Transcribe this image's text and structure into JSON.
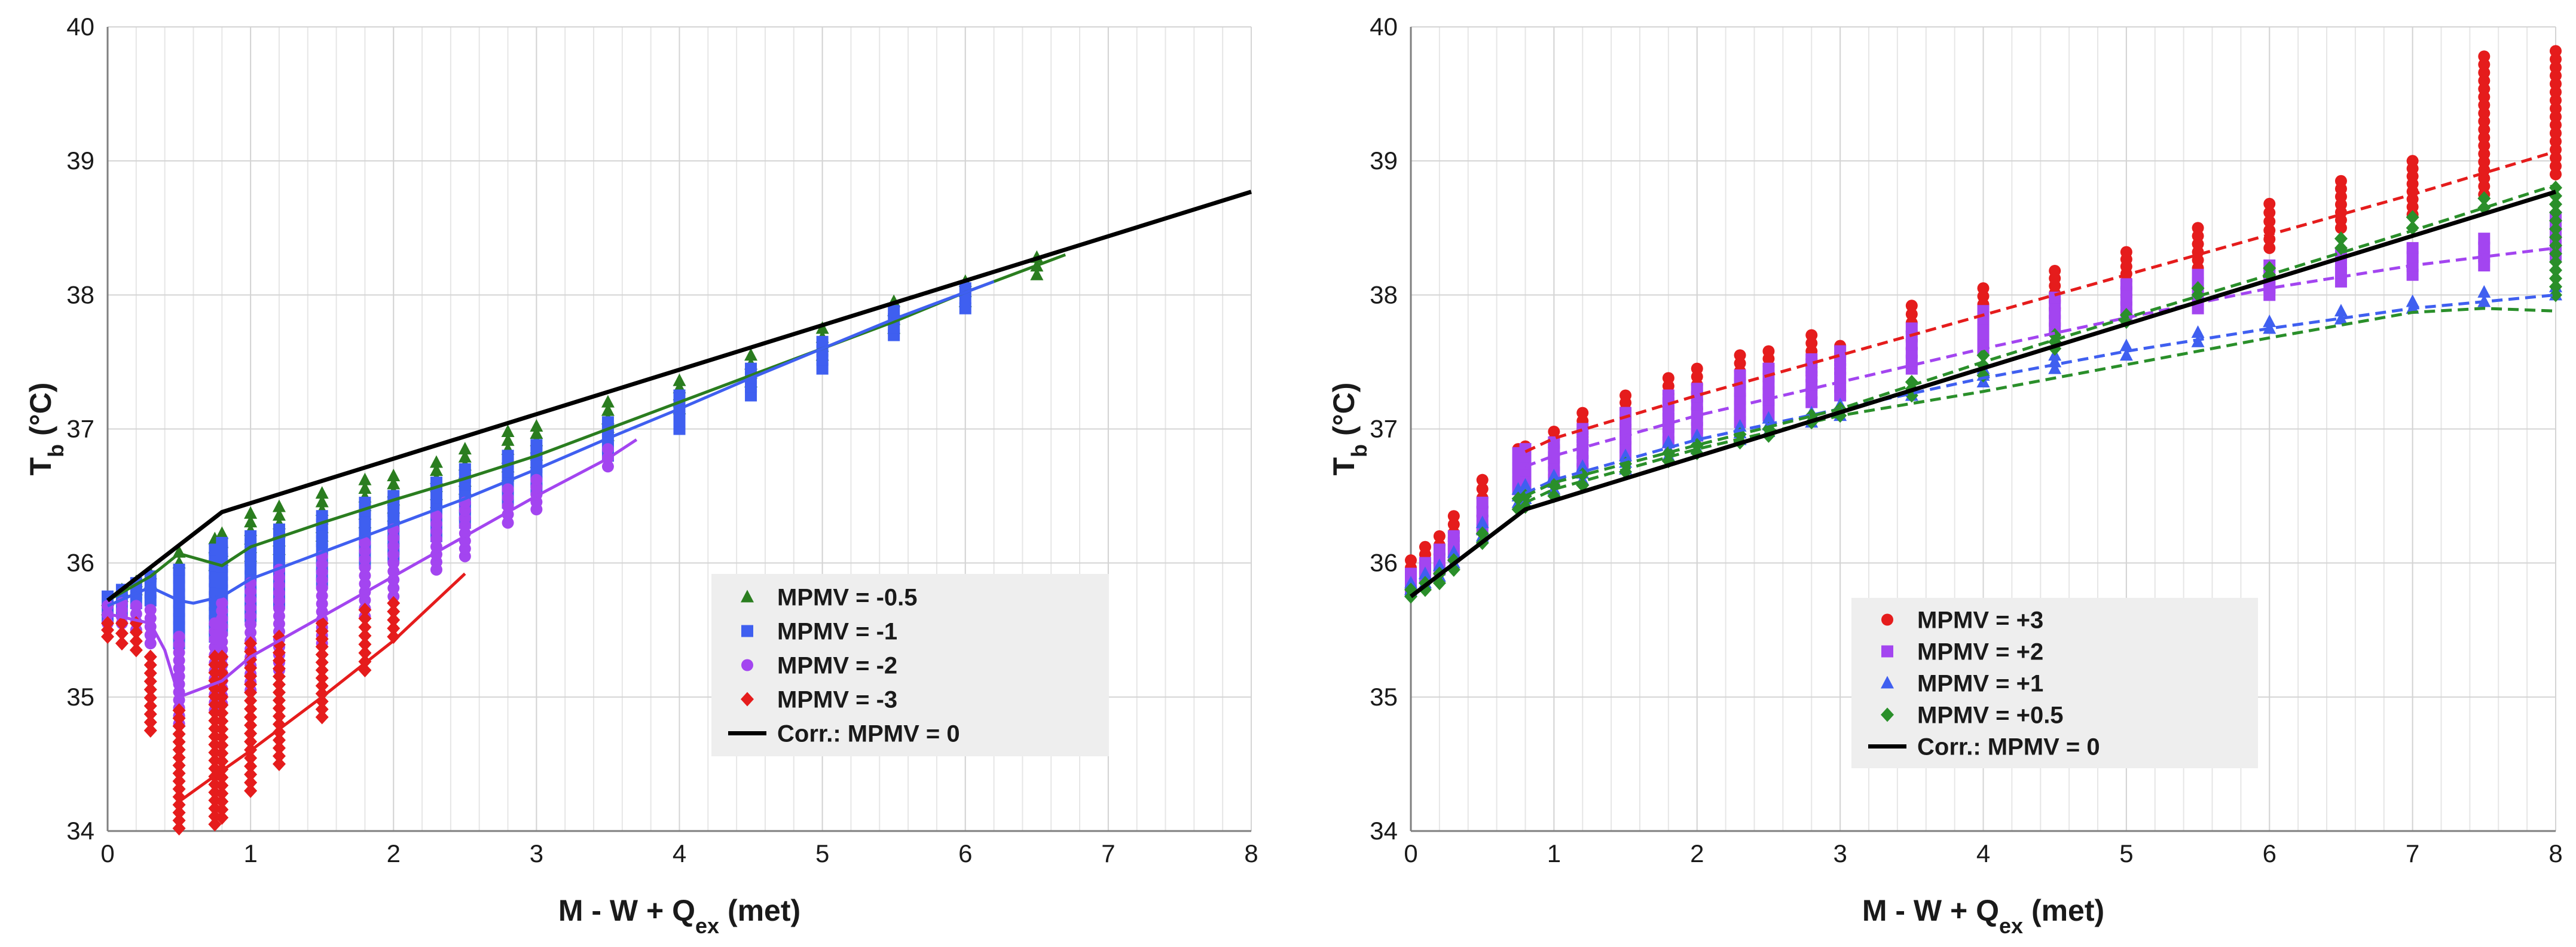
{
  "chart_data": [
    {
      "type": "scatter",
      "panel": "left",
      "xlabel": {
        "main": "M - W +  Q",
        "sub": "ex",
        "unit": " (met)"
      },
      "ylabel": {
        "main": "T",
        "sub": "b",
        "unit": " (°C)"
      },
      "xlim": [
        0,
        8
      ],
      "ylim": [
        34,
        40
      ],
      "xticks": [
        "0",
        "1",
        "2",
        "3",
        "4",
        "5",
        "6",
        "7",
        "8"
      ],
      "yticks": [
        "34",
        "35",
        "36",
        "37",
        "38",
        "39",
        "40"
      ],
      "grid": true,
      "legend_position": "center-right",
      "correlation": {
        "name": "Corr.: MPMV = 0",
        "color": "#000000",
        "x": [
          0,
          0.8,
          8
        ],
        "y": [
          35.72,
          36.38,
          38.77
        ]
      },
      "series": [
        {
          "name": "MPMV = -0.5",
          "marker": "triangle",
          "color": "#2a7d1f",
          "line_style": "solid",
          "fit_x": [
            0,
            0.3,
            0.5,
            0.8,
            1,
            1.5,
            2,
            2.5,
            3,
            3.5,
            4,
            4.5,
            5,
            5.5,
            6,
            6.5,
            6.7
          ],
          "fit_y": [
            35.72,
            35.9,
            36.07,
            35.98,
            36.12,
            36.3,
            36.47,
            36.63,
            36.8,
            37.0,
            37.2,
            37.4,
            37.6,
            37.8,
            38.02,
            38.22,
            38.3
          ],
          "x": [
            0,
            0.1,
            0.2,
            0.3,
            0.5,
            0.75,
            0.8,
            1,
            1.2,
            1.5,
            1.8,
            2,
            2.3,
            2.5,
            2.8,
            3,
            3.5,
            4,
            4.5,
            5,
            5.5,
            6,
            6.5
          ],
          "y_min": [
            35.65,
            35.75,
            35.8,
            35.85,
            36.0,
            35.98,
            36.02,
            36.05,
            36.1,
            36.2,
            36.3,
            36.35,
            36.45,
            36.55,
            36.65,
            36.75,
            36.95,
            37.15,
            37.35,
            37.55,
            37.75,
            37.95,
            38.15
          ],
          "y_max": [
            35.72,
            35.8,
            35.86,
            35.92,
            36.08,
            36.18,
            36.22,
            36.37,
            36.42,
            36.52,
            36.62,
            36.65,
            36.75,
            36.85,
            36.98,
            37.02,
            37.2,
            37.36,
            37.55,
            37.75,
            37.95,
            38.1,
            38.28
          ]
        },
        {
          "name": "MPMV = -1",
          "marker": "square",
          "color": "#3f5ff0",
          "line_style": "solid",
          "fit_x": [
            0,
            0.3,
            0.5,
            0.6,
            0.8,
            1,
            1.5,
            2,
            2.5,
            3,
            3.5,
            4,
            4.5,
            5,
            5.5,
            6,
            6.2
          ],
          "fit_y": [
            35.68,
            35.82,
            35.72,
            35.7,
            35.75,
            35.88,
            36.08,
            36.28,
            36.48,
            36.7,
            36.93,
            37.15,
            37.38,
            37.6,
            37.82,
            38.02,
            38.1
          ],
          "x": [
            0,
            0.1,
            0.2,
            0.3,
            0.5,
            0.75,
            0.8,
            1,
            1.2,
            1.5,
            1.8,
            2,
            2.3,
            2.5,
            2.8,
            3,
            3.5,
            4,
            4.5,
            5,
            5.5,
            6
          ],
          "y_min": [
            35.6,
            35.65,
            35.7,
            35.72,
            35.4,
            35.45,
            35.5,
            35.6,
            35.7,
            35.85,
            36.0,
            36.05,
            36.2,
            36.3,
            36.45,
            36.55,
            36.8,
            37.0,
            37.25,
            37.45,
            37.7,
            37.9
          ],
          "y_max": [
            35.75,
            35.8,
            35.85,
            35.9,
            35.95,
            36.1,
            36.15,
            36.2,
            36.25,
            36.35,
            36.45,
            36.5,
            36.6,
            36.7,
            36.8,
            36.88,
            37.05,
            37.25,
            37.45,
            37.65,
            37.88,
            38.05
          ]
        },
        {
          "name": "MPMV = -2",
          "marker": "circle",
          "color": "#a345f0",
          "line_style": "solid",
          "fit_x": [
            0,
            0.3,
            0.4,
            0.5,
            0.8,
            1,
            1.5,
            2,
            2.5,
            3,
            3.5,
            3.7
          ],
          "fit_y": [
            35.62,
            35.55,
            35.35,
            35.0,
            35.12,
            35.3,
            35.6,
            35.9,
            36.2,
            36.5,
            36.78,
            36.92
          ],
          "x": [
            0,
            0.1,
            0.2,
            0.3,
            0.5,
            0.75,
            0.8,
            1,
            1.2,
            1.5,
            1.8,
            2,
            2.3,
            2.5,
            2.8,
            3,
            3.5
          ],
          "y_min": [
            35.55,
            35.55,
            35.5,
            35.4,
            34.8,
            34.9,
            34.95,
            35.05,
            35.2,
            35.4,
            35.6,
            35.75,
            35.95,
            36.05,
            36.3,
            36.4,
            36.72
          ],
          "y_max": [
            35.68,
            35.7,
            35.68,
            35.65,
            35.45,
            35.55,
            35.7,
            35.85,
            35.95,
            36.05,
            36.15,
            36.25,
            36.35,
            36.45,
            36.55,
            36.62,
            36.85
          ]
        },
        {
          "name": "MPMV = -3",
          "marker": "diamond",
          "color": "#e51c1c",
          "line_style": "solid",
          "fit_x": [
            0.5,
            0.8,
            1,
            1.5,
            2,
            2.5
          ],
          "fit_y": [
            34.22,
            34.45,
            34.6,
            35.0,
            35.42,
            35.92
          ],
          "x": [
            0,
            0.1,
            0.2,
            0.3,
            0.5,
            0.75,
            0.8,
            1,
            1.2,
            1.5,
            1.8,
            2
          ],
          "y_min": [
            35.45,
            35.4,
            35.35,
            34.75,
            34.02,
            34.05,
            34.1,
            34.3,
            34.5,
            34.85,
            35.2,
            35.45
          ],
          "y_max": [
            35.55,
            35.55,
            35.55,
            35.3,
            34.9,
            35.3,
            35.3,
            35.4,
            35.45,
            35.55,
            35.65,
            35.7
          ]
        }
      ]
    },
    {
      "type": "scatter",
      "panel": "right",
      "xlabel": {
        "main": "M - W +  Q",
        "sub": "ex",
        "unit": " (met)"
      },
      "ylabel": {
        "main": "T",
        "sub": "b",
        "unit": " (°C)"
      },
      "xlim": [
        0,
        8
      ],
      "ylim": [
        34,
        40
      ],
      "xticks": [
        "0",
        "1",
        "2",
        "3",
        "4",
        "5",
        "6",
        "7",
        "8"
      ],
      "yticks": [
        "34",
        "35",
        "36",
        "37",
        "38",
        "39",
        "40"
      ],
      "grid": true,
      "legend_position": "lower-center",
      "correlation": {
        "name": "Corr.: MPMV = 0",
        "color": "#000000",
        "x": [
          0,
          0.8,
          8
        ],
        "y": [
          35.75,
          36.4,
          38.77
        ]
      },
      "series": [
        {
          "name": "MPMV = +3",
          "marker": "circle",
          "color": "#e51c1c",
          "line_style": "dashed",
          "fit_x": [
            0.8,
            1,
            2,
            3,
            4,
            5,
            6,
            7,
            8
          ],
          "fit_y": [
            36.83,
            36.93,
            37.25,
            37.55,
            37.85,
            38.15,
            38.45,
            38.75,
            39.07
          ],
          "x": [
            0,
            0.1,
            0.2,
            0.3,
            0.5,
            0.75,
            0.8,
            1,
            1.2,
            1.5,
            1.8,
            2,
            2.3,
            2.5,
            2.8,
            3,
            3.5,
            4,
            4.5,
            5,
            5.5,
            6,
            6.5,
            7,
            7.5,
            8
          ],
          "y_min": [
            35.85,
            35.95,
            36.0,
            36.1,
            36.35,
            36.7,
            36.72,
            36.8,
            36.88,
            36.98,
            37.08,
            37.15,
            37.25,
            37.3,
            37.4,
            37.45,
            37.6,
            37.75,
            37.9,
            38.05,
            38.2,
            38.35,
            38.5,
            38.6,
            38.75,
            38.9
          ],
          "y_max": [
            36.02,
            36.12,
            36.2,
            36.35,
            36.62,
            36.85,
            36.87,
            36.98,
            37.12,
            37.25,
            37.38,
            37.45,
            37.55,
            37.58,
            37.7,
            37.62,
            37.92,
            38.05,
            38.18,
            38.32,
            38.5,
            38.68,
            38.85,
            39.0,
            39.78,
            39.82
          ]
        },
        {
          "name": "MPMV = +2",
          "marker": "square",
          "color": "#a345f0",
          "line_style": "dashed",
          "fit_x": [
            0.8,
            1,
            2,
            3,
            4,
            5,
            6,
            7,
            8
          ],
          "fit_y": [
            36.72,
            36.8,
            37.1,
            37.35,
            37.6,
            37.83,
            38.05,
            38.22,
            38.35
          ],
          "x": [
            0,
            0.1,
            0.2,
            0.3,
            0.5,
            0.75,
            0.8,
            1,
            1.2,
            1.5,
            1.8,
            2,
            2.3,
            2.5,
            2.8,
            3,
            3.5,
            4,
            4.5,
            5,
            5.5,
            6,
            6.5,
            7,
            7.5,
            8
          ],
          "y_min": [
            35.8,
            35.9,
            35.95,
            36.05,
            36.25,
            36.55,
            36.58,
            36.62,
            36.7,
            36.8,
            36.9,
            36.95,
            37.05,
            37.1,
            37.2,
            37.25,
            37.45,
            37.6,
            37.75,
            37.85,
            37.9,
            38.0,
            38.1,
            38.15,
            38.22,
            38.3
          ],
          "y_max": [
            35.92,
            36.0,
            36.1,
            36.2,
            36.45,
            36.82,
            36.85,
            36.9,
            37.0,
            37.12,
            37.25,
            37.3,
            37.4,
            37.45,
            37.52,
            37.58,
            37.75,
            37.88,
            37.98,
            38.08,
            38.15,
            38.22,
            38.3,
            38.35,
            38.42,
            38.58
          ]
        },
        {
          "name": "MPMV = +1",
          "marker": "triangle",
          "color": "#3f5ff0",
          "line_style": "dashed",
          "fit_x": [
            0.8,
            1,
            2,
            3,
            4,
            5,
            6,
            7,
            8
          ],
          "fit_y": [
            36.52,
            36.62,
            36.92,
            37.15,
            37.38,
            37.58,
            37.75,
            37.9,
            38.0
          ],
          "x": [
            0,
            0.1,
            0.2,
            0.3,
            0.5,
            0.75,
            0.8,
            1,
            1.2,
            1.5,
            1.8,
            2,
            2.3,
            2.5,
            2.8,
            3,
            3.5,
            4,
            4.5,
            5,
            5.5,
            6,
            6.5,
            7,
            7.5,
            8
          ],
          "y_min": [
            35.8,
            35.85,
            35.9,
            36.0,
            36.2,
            36.45,
            36.48,
            36.55,
            36.62,
            36.7,
            36.8,
            36.85,
            36.92,
            36.98,
            37.05,
            37.1,
            37.25,
            37.35,
            37.45,
            37.55,
            37.65,
            37.75,
            37.82,
            37.9,
            37.95,
            38.0
          ],
          "y_max": [
            35.85,
            35.92,
            35.98,
            36.08,
            36.3,
            36.55,
            36.58,
            36.65,
            36.72,
            36.8,
            36.9,
            36.95,
            37.02,
            37.08,
            37.12,
            37.18,
            37.32,
            37.45,
            37.55,
            37.62,
            37.72,
            37.8,
            37.88,
            37.95,
            38.02,
            38.06
          ]
        },
        {
          "name": "MPMV = +0.5",
          "marker": "diamond",
          "color": "#2a8f2a",
          "line_style": "dashed",
          "fit_x": [
            0.8,
            1,
            2,
            3,
            4,
            5,
            6,
            7,
            7.5,
            8
          ],
          "fit_y": [
            36.45,
            36.55,
            36.85,
            37.1,
            37.28,
            37.48,
            37.68,
            37.87,
            37.9,
            37.88
          ],
          "fit2_x": [
            0.8,
            1,
            2,
            3,
            4,
            5,
            6,
            7,
            8
          ],
          "fit2_y": [
            36.5,
            36.6,
            36.88,
            37.15,
            37.5,
            37.83,
            38.15,
            38.48,
            38.82
          ],
          "x": [
            0,
            0.1,
            0.2,
            0.3,
            0.5,
            0.75,
            0.8,
            1,
            1.2,
            1.5,
            1.8,
            2,
            2.3,
            2.5,
            2.8,
            3,
            3.5,
            4,
            4.5,
            5,
            5.5,
            6,
            6.5,
            7,
            7.5,
            8
          ],
          "y_min": [
            35.75,
            35.8,
            35.85,
            35.95,
            36.15,
            36.4,
            36.42,
            36.5,
            36.58,
            36.68,
            36.76,
            36.82,
            36.9,
            36.95,
            37.05,
            37.1,
            37.25,
            37.4,
            37.6,
            37.8,
            38.0,
            38.15,
            38.35,
            38.5,
            38.65,
            38.0
          ],
          "y_max": [
            35.8,
            35.85,
            35.92,
            36.02,
            36.22,
            36.48,
            36.5,
            36.58,
            36.66,
            36.74,
            36.82,
            36.88,
            36.96,
            37.0,
            37.1,
            37.15,
            37.35,
            37.55,
            37.7,
            37.85,
            38.05,
            38.2,
            38.42,
            38.58,
            38.72,
            38.8
          ]
        }
      ]
    }
  ]
}
